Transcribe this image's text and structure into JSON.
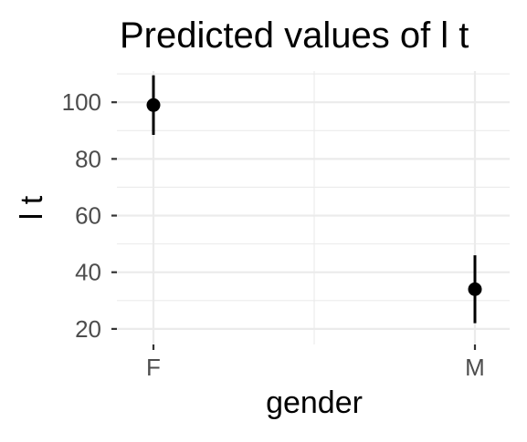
{
  "chart_data": {
    "type": "scatter",
    "title": "Predicted values of l t",
    "xlabel": "gender",
    "ylabel": "l t",
    "categories": [
      "F",
      "M"
    ],
    "series": [
      {
        "values": [
          99,
          34
        ],
        "ci_low": [
          88.5,
          22
        ],
        "ci_high": [
          109.5,
          46
        ]
      }
    ],
    "ylim": [
      14.5,
      111
    ],
    "y_ticks": [
      20,
      40,
      60,
      80,
      100
    ],
    "y_tick_labels": [
      "20",
      "40",
      "60",
      "80",
      "100"
    ],
    "grid": true,
    "legend": "none",
    "point_color": "#000000"
  }
}
